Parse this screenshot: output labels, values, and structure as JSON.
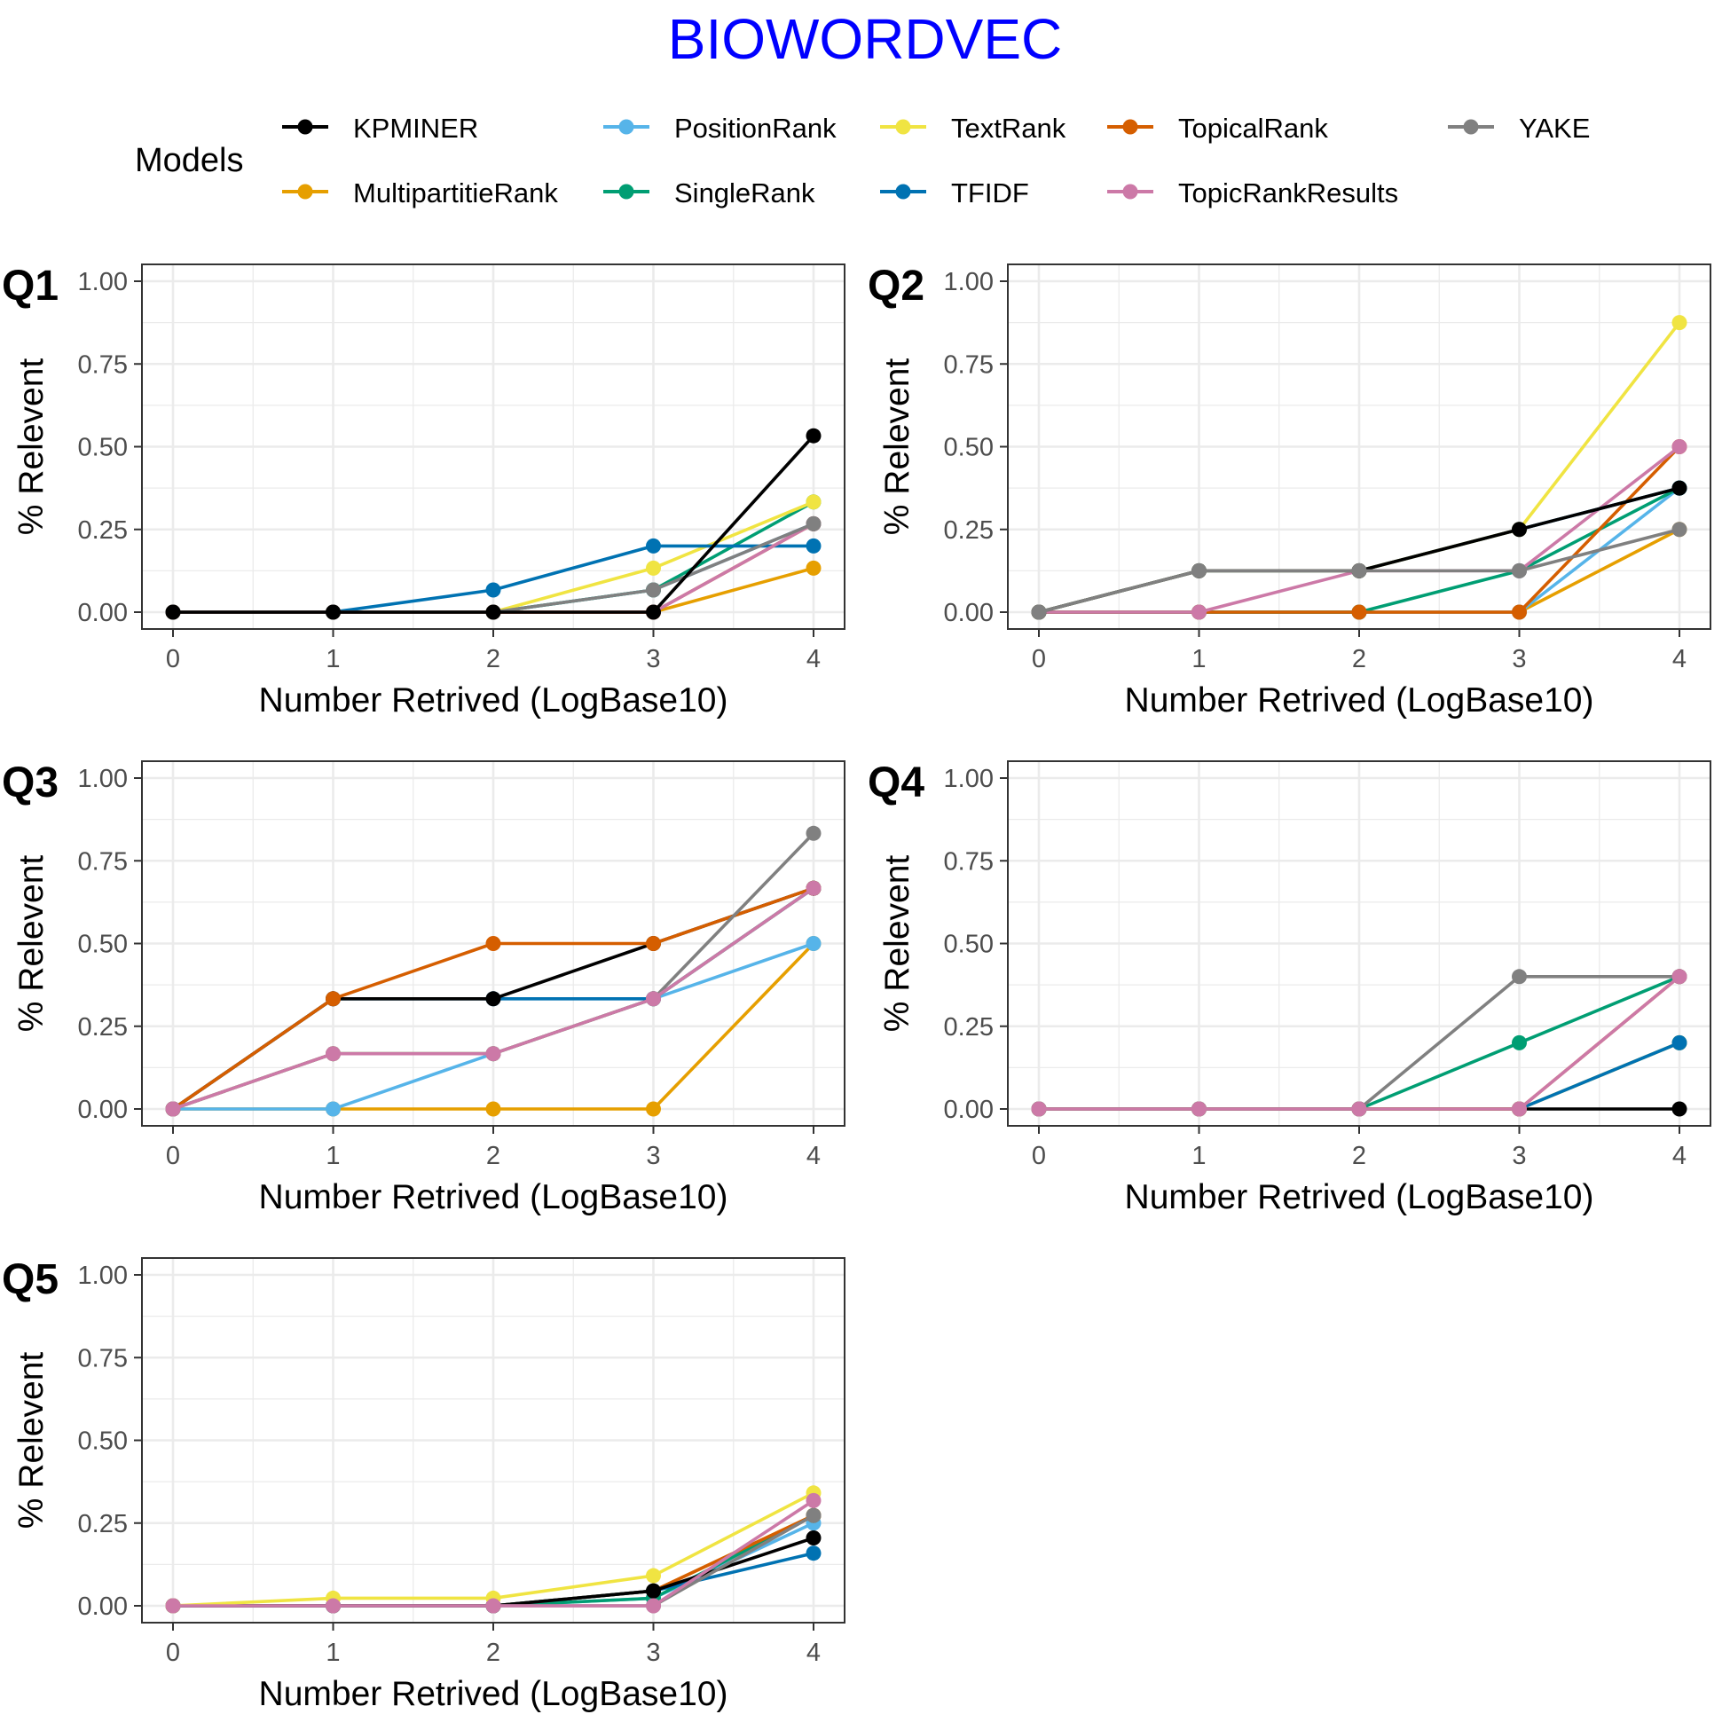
{
  "figure": {
    "title": "BIOWORDVEC",
    "title_color": "#0000FF"
  },
  "legend": {
    "title": "Models",
    "placement": "top",
    "entries": [
      {
        "name": "KPMINER",
        "color": "#000000"
      },
      {
        "name": "PositionRank",
        "color": "#56B4E9"
      },
      {
        "name": "TextRank",
        "color": "#F0E442"
      },
      {
        "name": "TopicalRank",
        "color": "#D55E00"
      },
      {
        "name": "YAKE",
        "color": "#808080"
      },
      {
        "name": "MultipartitieRank",
        "color": "#E69F00"
      },
      {
        "name": "SingleRank",
        "color": "#009E73"
      },
      {
        "name": "TFIDF",
        "color": "#0072B2"
      },
      {
        "name": "TopicRankResults",
        "color": "#CC79A7"
      }
    ]
  },
  "chart_data": [
    {
      "type": "line",
      "title": "Q1",
      "xlabel": "Number Retrived (LogBase10)",
      "ylabel": "% Relevent",
      "x": [
        0,
        1,
        2,
        3,
        4
      ],
      "xlim": [
        0,
        4
      ],
      "ylim": [
        0,
        1
      ],
      "x_ticks": [
        "0",
        "1",
        "2",
        "3",
        "4"
      ],
      "y_ticks": [
        "0.00",
        "0.25",
        "0.50",
        "0.75",
        "1.00"
      ],
      "grid": true,
      "series": [
        {
          "name": "MultipartitieRank",
          "values": [
            0,
            0,
            0,
            0,
            0.133
          ]
        },
        {
          "name": "PositionRank",
          "values": [
            0,
            0,
            0,
            0.067,
            0.267
          ]
        },
        {
          "name": "SingleRank",
          "values": [
            0,
            0,
            0,
            0.067,
            0.333
          ]
        },
        {
          "name": "TextRank",
          "values": [
            0,
            0,
            0,
            0.133,
            0.333
          ]
        },
        {
          "name": "TFIDF",
          "values": [
            0,
            0,
            0.067,
            0.2,
            0.2
          ]
        },
        {
          "name": "TopicalRank",
          "values": [
            0,
            0,
            0,
            0,
            0.267
          ]
        },
        {
          "name": "TopicRankResults",
          "values": [
            0,
            0,
            0,
            0,
            0.267
          ]
        },
        {
          "name": "YAKE",
          "values": [
            0,
            0,
            0,
            0.067,
            0.267
          ]
        },
        {
          "name": "KPMINER",
          "values": [
            0,
            0,
            0,
            0,
            0.533
          ]
        }
      ]
    },
    {
      "type": "line",
      "title": "Q2",
      "xlabel": "Number Retrived (LogBase10)",
      "ylabel": "% Relevent",
      "x": [
        0,
        1,
        2,
        3,
        4
      ],
      "xlim": [
        0,
        4
      ],
      "ylim": [
        0,
        1
      ],
      "x_ticks": [
        "0",
        "1",
        "2",
        "3",
        "4"
      ],
      "y_ticks": [
        "0.00",
        "0.25",
        "0.50",
        "0.75",
        "1.00"
      ],
      "grid": true,
      "series": [
        {
          "name": "MultipartitieRank",
          "values": [
            0,
            0,
            0,
            0,
            0.25
          ]
        },
        {
          "name": "PositionRank",
          "values": [
            0,
            0,
            0,
            0,
            0.375
          ]
        },
        {
          "name": "SingleRank",
          "values": [
            0,
            0,
            0,
            0.125,
            0.375
          ]
        },
        {
          "name": "TopicalRank",
          "values": [
            0,
            0,
            0,
            0,
            0.5
          ]
        },
        {
          "name": "TopicRankResults",
          "values": [
            0,
            0,
            0.125,
            0.125,
            0.5
          ]
        },
        {
          "name": "TFIDF",
          "values": [
            0,
            0.125,
            0.125,
            0.25,
            0.375
          ]
        },
        {
          "name": "TextRank",
          "values": [
            0,
            0.125,
            0.125,
            0.25,
            0.875
          ]
        },
        {
          "name": "KPMINER",
          "values": [
            0,
            0.125,
            0.125,
            0.25,
            0.375
          ]
        },
        {
          "name": "YAKE",
          "values": [
            0,
            0.125,
            0.125,
            0.125,
            0.25
          ]
        }
      ]
    },
    {
      "type": "line",
      "title": "Q3",
      "xlabel": "Number Retrived (LogBase10)",
      "ylabel": "% Relevent",
      "x": [
        0,
        1,
        2,
        3,
        4
      ],
      "xlim": [
        0,
        4
      ],
      "ylim": [
        0,
        1
      ],
      "x_ticks": [
        "0",
        "1",
        "2",
        "3",
        "4"
      ],
      "y_ticks": [
        "0.00",
        "0.25",
        "0.50",
        "0.75",
        "1.00"
      ],
      "grid": true,
      "series": [
        {
          "name": "MultipartitieRank",
          "values": [
            0,
            0,
            0,
            0,
            0.5
          ]
        },
        {
          "name": "PositionRank",
          "values": [
            0,
            0,
            0.167,
            0.333,
            0.5
          ]
        },
        {
          "name": "SingleRank",
          "values": [
            0,
            0.167,
            0.167,
            0.333,
            0.667
          ]
        },
        {
          "name": "TextRank",
          "values": [
            0,
            0.167,
            0.167,
            0.333,
            0.667
          ]
        },
        {
          "name": "TFIDF",
          "values": [
            0,
            0.333,
            0.333,
            0.333,
            0.667
          ]
        },
        {
          "name": "KPMINER",
          "values": [
            0,
            0.333,
            0.333,
            0.5,
            0.667
          ]
        },
        {
          "name": "TopicalRank",
          "values": [
            0,
            0.333,
            0.5,
            0.5,
            0.667
          ]
        },
        {
          "name": "YAKE",
          "values": [
            0,
            0.167,
            0.167,
            0.333,
            0.833
          ]
        },
        {
          "name": "TopicRankResults",
          "values": [
            0,
            0.167,
            0.167,
            0.333,
            0.667
          ]
        }
      ]
    },
    {
      "type": "line",
      "title": "Q4",
      "xlabel": "Number Retrived (LogBase10)",
      "ylabel": "% Relevent",
      "x": [
        0,
        1,
        2,
        3,
        4
      ],
      "xlim": [
        0,
        4
      ],
      "ylim": [
        0,
        1
      ],
      "x_ticks": [
        "0",
        "1",
        "2",
        "3",
        "4"
      ],
      "y_ticks": [
        "0.00",
        "0.25",
        "0.50",
        "0.75",
        "1.00"
      ],
      "grid": true,
      "series": [
        {
          "name": "KPMINER",
          "values": [
            0,
            0,
            0,
            0,
            0
          ]
        },
        {
          "name": "MultipartitieRank",
          "values": [
            0,
            0,
            0,
            0,
            0.2
          ]
        },
        {
          "name": "PositionRank",
          "values": [
            0,
            0,
            0,
            0,
            0.2
          ]
        },
        {
          "name": "TextRank",
          "values": [
            0,
            0,
            0,
            0,
            0.2
          ]
        },
        {
          "name": "TFIDF",
          "values": [
            0,
            0,
            0,
            0,
            0.2
          ]
        },
        {
          "name": "SingleRank",
          "values": [
            0,
            0,
            0,
            0.2,
            0.4
          ]
        },
        {
          "name": "TopicalRank",
          "values": [
            0,
            0,
            0,
            0,
            0.4
          ]
        },
        {
          "name": "YAKE",
          "values": [
            0,
            0,
            0,
            0.4,
            0.4
          ]
        },
        {
          "name": "TopicRankResults",
          "values": [
            0,
            0,
            0,
            0,
            0.4
          ]
        }
      ]
    },
    {
      "type": "line",
      "title": "Q5",
      "xlabel": "Number Retrived (LogBase10)",
      "ylabel": "% Relevent",
      "x": [
        0,
        1,
        2,
        3,
        4
      ],
      "xlim": [
        0,
        4
      ],
      "ylim": [
        0,
        1
      ],
      "x_ticks": [
        "0",
        "1",
        "2",
        "3",
        "4"
      ],
      "y_ticks": [
        "0.00",
        "0.25",
        "0.50",
        "0.75",
        "1.00"
      ],
      "grid": true,
      "series": [
        {
          "name": "MultipartitieRank",
          "values": [
            0,
            0,
            0,
            0.045,
            0.273
          ]
        },
        {
          "name": "PositionRank",
          "values": [
            0,
            0,
            0,
            0.023,
            0.25
          ]
        },
        {
          "name": "SingleRank",
          "values": [
            0,
            0,
            0,
            0.023,
            0.273
          ]
        },
        {
          "name": "TopicalRank",
          "values": [
            0,
            0,
            0,
            0.045,
            0.273
          ]
        },
        {
          "name": "TFIDF",
          "values": [
            0,
            0,
            0,
            0.045,
            0.159
          ]
        },
        {
          "name": "KPMINER",
          "values": [
            0,
            0,
            0,
            0.045,
            0.205
          ]
        },
        {
          "name": "YAKE",
          "values": [
            0,
            0,
            0,
            0,
            0.273
          ]
        },
        {
          "name": "TextRank",
          "values": [
            0,
            0.023,
            0.023,
            0.091,
            0.341
          ]
        },
        {
          "name": "TopicRankResults",
          "values": [
            0,
            0,
            0,
            0,
            0.318
          ]
        }
      ]
    }
  ]
}
